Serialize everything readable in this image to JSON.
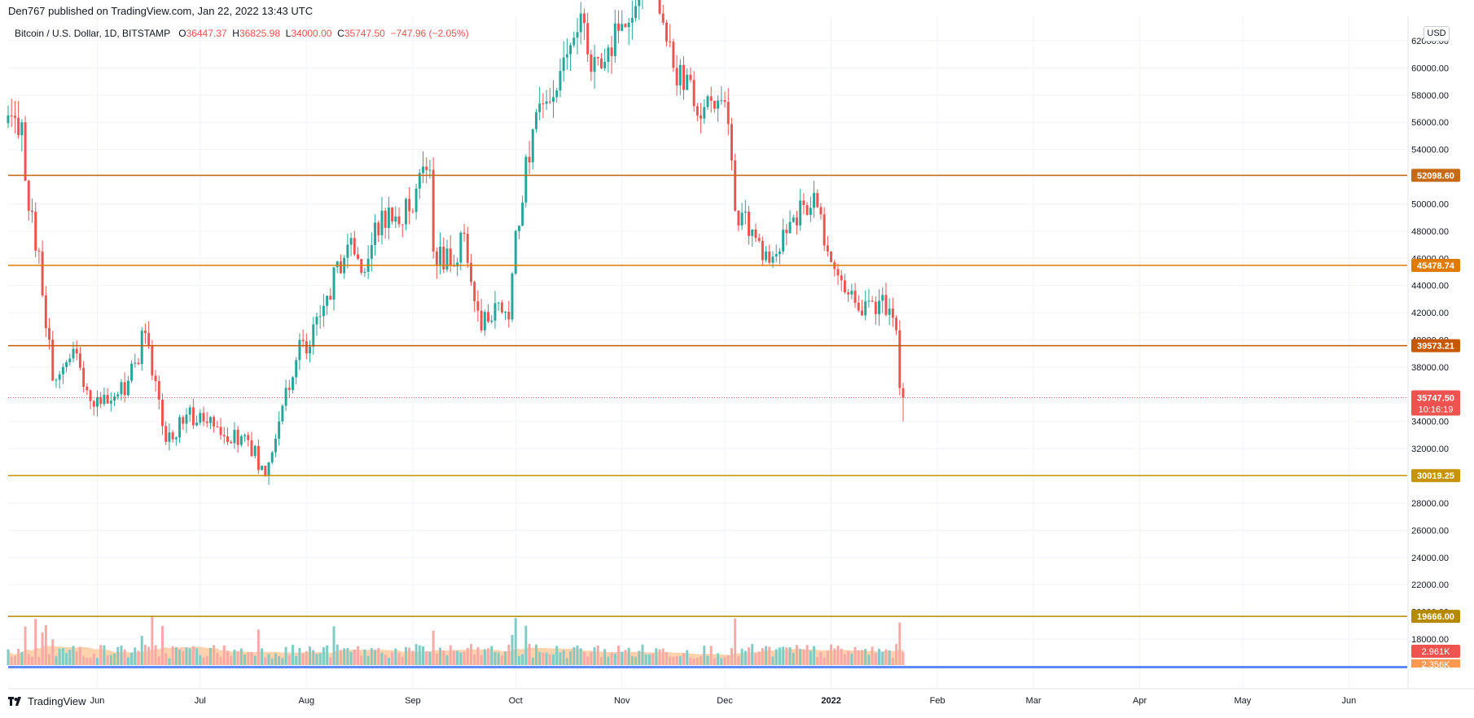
{
  "header": {
    "published": "Den767 published on TradingView.com, Jan 22, 2022 13:43 UTC"
  },
  "legend": {
    "symbol": "Bitcoin / U.S. Dollar, 1D, BITSTAMP",
    "o_label": "O",
    "o_value": "36447.37",
    "h_label": "H",
    "h_value": "36825.98",
    "l_label": "L",
    "l_value": "34000.00",
    "c_label": "C",
    "c_value": "35747.50",
    "change": "−747.96 (−2.05%)"
  },
  "currency_button": "USD",
  "brand": "TradingView",
  "colors": {
    "up": "#26a69a",
    "down": "#ef5350",
    "price_line": "#ef5350",
    "vol_up": "#80cbc4",
    "vol_down": "#f7a9a7",
    "vol_ma_fill": "#ffcaa0",
    "grid": "#f0f3fa"
  },
  "chart_data": {
    "type": "candlestick",
    "instrument": "BTCUSD",
    "timeframe": "1D",
    "y_axis": {
      "ticks": [
        18000,
        20000,
        22000,
        24000,
        26000,
        28000,
        30000,
        32000,
        34000,
        36000,
        38000,
        40000,
        42000,
        44000,
        46000,
        48000,
        50000,
        52000,
        54000,
        56000,
        58000,
        60000,
        62000
      ],
      "tick_labels": [
        "18000.00",
        "20000.00",
        "22000.00",
        "24000.00",
        "26000.00",
        "28000.00",
        "30000.00",
        "32000.00",
        "34000.00",
        "36000.00",
        "38000.00",
        "40000.00",
        "42000.00",
        "44000.00",
        "46000.00",
        "48000.00",
        "50000.00",
        "52000.00",
        "54000.00",
        "56000.00",
        "58000.00",
        "60000.00",
        "62000.00"
      ]
    },
    "x_axis": {
      "labels": [
        {
          "text": "Jun",
          "date": "2021-06-01",
          "bold": false
        },
        {
          "text": "Jul",
          "date": "2021-07-01",
          "bold": false
        },
        {
          "text": "Aug",
          "date": "2021-08-01",
          "bold": false
        },
        {
          "text": "Sep",
          "date": "2021-09-01",
          "bold": false
        },
        {
          "text": "Oct",
          "date": "2021-10-01",
          "bold": false
        },
        {
          "text": "Nov",
          "date": "2021-11-01",
          "bold": false
        },
        {
          "text": "Dec",
          "date": "2021-12-01",
          "bold": false
        },
        {
          "text": "2022",
          "date": "2022-01-01",
          "bold": true
        },
        {
          "text": "Feb",
          "date": "2022-02-01",
          "bold": false
        },
        {
          "text": "Mar",
          "date": "2022-03-01",
          "bold": false
        },
        {
          "text": "Apr",
          "date": "2022-04-01",
          "bold": false
        },
        {
          "text": "May",
          "date": "2022-05-01",
          "bold": false
        },
        {
          "text": "Jun",
          "date": "2022-06-01",
          "bold": false
        }
      ],
      "start": "2021-05-06",
      "end": "2022-06-18"
    },
    "horizontal_levels": [
      {
        "price": 52098.6,
        "label": "52098.60",
        "color": "#c66a16"
      },
      {
        "price": 45478.74,
        "label": "45478.74",
        "color": "#e07b00"
      },
      {
        "price": 39573.21,
        "label": "39573.21",
        "color": "#c65800"
      },
      {
        "price": 30019.25,
        "label": "30019.25",
        "color": "#c79300"
      },
      {
        "price": 19666.0,
        "label": "19666.00",
        "color": "#b58a00"
      }
    ],
    "last_price": {
      "price": 35747.5,
      "label": "35747.50",
      "countdown": "10:16:19"
    },
    "volume": {
      "last_label": "2.961K",
      "ma_label": "2.356K"
    },
    "anchors": [
      {
        "date": "2021-05-06",
        "close": 56500
      },
      {
        "date": "2021-05-10",
        "close": 56000
      },
      {
        "date": "2021-05-12",
        "close": 49500
      },
      {
        "date": "2021-05-15",
        "close": 46500
      },
      {
        "date": "2021-05-19",
        "close": 37000
      },
      {
        "date": "2021-05-22",
        "close": 38000
      },
      {
        "date": "2021-05-26",
        "close": 39000
      },
      {
        "date": "2021-05-30",
        "close": 35500
      },
      {
        "date": "2021-06-07",
        "close": 36000
      },
      {
        "date": "2021-06-10",
        "close": 37000
      },
      {
        "date": "2021-06-15",
        "close": 40500
      },
      {
        "date": "2021-06-21",
        "close": 32500
      },
      {
        "date": "2021-06-27",
        "close": 34500
      },
      {
        "date": "2021-07-02",
        "close": 34000
      },
      {
        "date": "2021-07-07",
        "close": 33000
      },
      {
        "date": "2021-07-14",
        "close": 33000
      },
      {
        "date": "2021-07-20",
        "close": 30000
      },
      {
        "date": "2021-07-24",
        "close": 34000
      },
      {
        "date": "2021-07-30",
        "close": 40000
      },
      {
        "date": "2021-08-02",
        "close": 39500
      },
      {
        "date": "2021-08-06",
        "close": 42500
      },
      {
        "date": "2021-08-13",
        "close": 47000
      },
      {
        "date": "2021-08-18",
        "close": 45000
      },
      {
        "date": "2021-08-23",
        "close": 49500
      },
      {
        "date": "2021-08-28",
        "close": 48500
      },
      {
        "date": "2021-09-06",
        "close": 52500
      },
      {
        "date": "2021-09-07",
        "close": 46500
      },
      {
        "date": "2021-09-12",
        "close": 45500
      },
      {
        "date": "2021-09-16",
        "close": 47800
      },
      {
        "date": "2021-09-21",
        "close": 40700
      },
      {
        "date": "2021-09-25",
        "close": 42700
      },
      {
        "date": "2021-09-29",
        "close": 41500
      },
      {
        "date": "2021-10-01",
        "close": 48000
      },
      {
        "date": "2021-10-06",
        "close": 55500
      },
      {
        "date": "2021-10-11",
        "close": 57500
      },
      {
        "date": "2021-10-16",
        "close": 61000
      },
      {
        "date": "2021-10-20",
        "close": 64000
      },
      {
        "date": "2021-10-22",
        "close": 61000
      },
      {
        "date": "2021-10-28",
        "close": 61500
      },
      {
        "date": "2021-11-02",
        "close": 63000
      },
      {
        "date": "2021-11-09",
        "close": 67500
      },
      {
        "date": "2021-11-12",
        "close": 64000
      },
      {
        "date": "2021-11-16",
        "close": 60000
      },
      {
        "date": "2021-11-20",
        "close": 59500
      },
      {
        "date": "2021-11-23",
        "close": 56500
      },
      {
        "date": "2021-11-28",
        "close": 57000
      },
      {
        "date": "2021-12-01",
        "close": 57500
      },
      {
        "date": "2021-12-04",
        "close": 49500
      },
      {
        "date": "2021-12-10",
        "close": 47500
      },
      {
        "date": "2021-12-13",
        "close": 46500
      },
      {
        "date": "2021-12-17",
        "close": 46500
      },
      {
        "date": "2021-12-21",
        "close": 49000
      },
      {
        "date": "2021-12-27",
        "close": 50800
      },
      {
        "date": "2021-12-31",
        "close": 46500
      },
      {
        "date": "2022-01-05",
        "close": 43500
      },
      {
        "date": "2022-01-10",
        "close": 41800
      },
      {
        "date": "2022-01-13",
        "close": 42800
      },
      {
        "date": "2022-01-18",
        "close": 42300
      },
      {
        "date": "2022-01-20",
        "close": 40700
      },
      {
        "date": "2022-01-21",
        "close": 36450
      },
      {
        "date": "2022-01-22",
        "close": 35747.5
      }
    ]
  }
}
